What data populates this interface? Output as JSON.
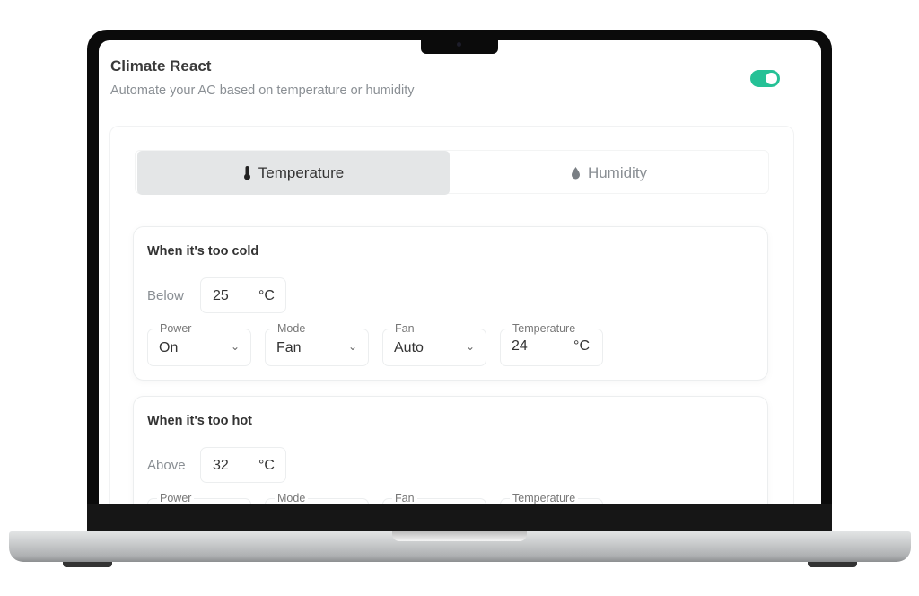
{
  "header": {
    "title": "Climate React",
    "subtitle": "Automate your AC based on temperature or humidity",
    "enabled": true,
    "accent": "#25c196"
  },
  "tabs": [
    {
      "label": "Temperature",
      "icon": "thermometer-icon",
      "active": true
    },
    {
      "label": "Humidity",
      "icon": "droplet-icon",
      "active": false
    }
  ],
  "cold": {
    "heading": "When it's too cold",
    "threshold_label": "Below",
    "threshold": "25",
    "unit": "°C",
    "fields": {
      "power_label": "Power",
      "power": "On",
      "mode_label": "Mode",
      "mode": "Fan",
      "fan_label": "Fan",
      "fan": "Auto",
      "temp_label": "Temperature",
      "temp": "24",
      "temp_unit": "°C"
    }
  },
  "hot": {
    "heading": "When it's too hot",
    "threshold_label": "Above",
    "threshold": "32",
    "unit": "°C",
    "fields": {
      "power_label": "Power",
      "mode_label": "Mode",
      "fan_label": "Fan",
      "temp_label": "Temperature"
    }
  }
}
